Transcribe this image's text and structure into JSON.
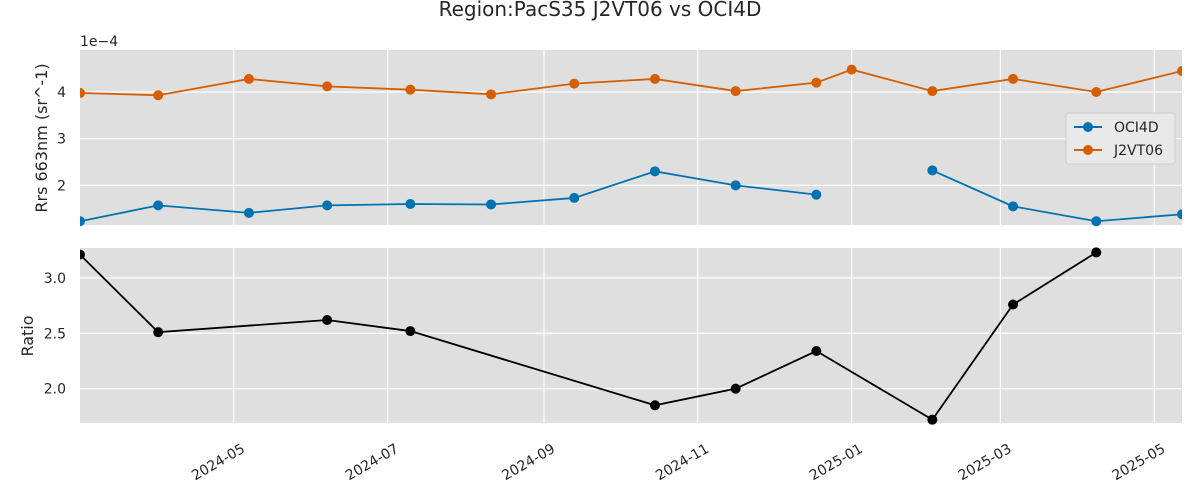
{
  "chart_data": {
    "title": "Region:PacS35 J2VT06 vs OCI4D",
    "xlim": [
      "2024-03-01",
      "2025-05-12"
    ],
    "xticks": [
      "2024-05",
      "2024-07",
      "2024-09",
      "2024-11",
      "2025-01",
      "2025-03",
      "2025-05"
    ],
    "panels": [
      {
        "type": "line",
        "ylabel": "Rrs 663nm (sr^-1)",
        "y_offset_label": "1e−4",
        "ylim": [
          1.15,
          4.9
        ],
        "yticks": [
          "2",
          "3",
          "4"
        ],
        "grid": true,
        "legend_position": "center-right",
        "series": [
          {
            "name": "OCI4D",
            "color": "#0072b2",
            "points": [
              [
                "2024-03-01",
                1.23
              ],
              [
                "2024-04-01",
                1.57
              ],
              [
                "2024-05-07",
                1.41
              ],
              [
                "2024-06-07",
                1.57
              ],
              [
                "2024-07-10",
                1.6
              ],
              [
                "2024-08-11",
                1.59
              ],
              [
                "2024-09-13",
                1.73
              ],
              [
                "2024-10-15",
                2.3
              ],
              [
                "2024-11-16",
                2.0
              ],
              [
                "2024-12-18",
                1.8
              ],
              [
                "2025-01-19",
                null
              ],
              [
                "2025-02-02",
                2.32
              ],
              [
                "2025-03-06",
                1.55
              ],
              [
                "2025-04-08",
                1.23
              ],
              [
                "2025-05-12",
                1.38
              ]
            ]
          },
          {
            "name": "J2VT06",
            "color": "#d55e00",
            "points": [
              [
                "2024-03-01",
                3.98
              ],
              [
                "2024-04-01",
                3.93
              ],
              [
                "2024-05-07",
                4.28
              ],
              [
                "2024-06-07",
                4.12
              ],
              [
                "2024-07-10",
                4.05
              ],
              [
                "2024-08-11",
                3.95
              ],
              [
                "2024-09-13",
                4.18
              ],
              [
                "2024-10-15",
                4.28
              ],
              [
                "2024-11-16",
                4.02
              ],
              [
                "2024-12-18",
                4.2
              ],
              [
                "2025-01-01",
                4.48
              ],
              [
                "2025-02-02",
                4.02
              ],
              [
                "2025-03-06",
                4.28
              ],
              [
                "2025-04-08",
                4.0
              ],
              [
                "2025-05-12",
                4.45
              ]
            ]
          }
        ]
      },
      {
        "type": "line",
        "ylabel": "Ratio",
        "ylim": [
          1.69,
          3.27
        ],
        "yticks": [
          "2.0",
          "2.5",
          "3.0"
        ],
        "grid": true,
        "series": [
          {
            "color": "#000000",
            "points": [
              [
                "2024-03-01",
                3.21
              ],
              [
                "2024-04-01",
                2.51
              ],
              [
                "2024-06-07",
                2.62
              ],
              [
                "2024-07-10",
                2.52
              ],
              [
                "2024-10-15",
                1.85
              ],
              [
                "2024-11-16",
                2.0
              ],
              [
                "2024-12-18",
                2.34
              ],
              [
                "2025-02-02",
                1.72
              ],
              [
                "2025-03-06",
                2.76
              ],
              [
                "2025-04-08",
                3.23
              ]
            ]
          }
        ]
      }
    ]
  }
}
